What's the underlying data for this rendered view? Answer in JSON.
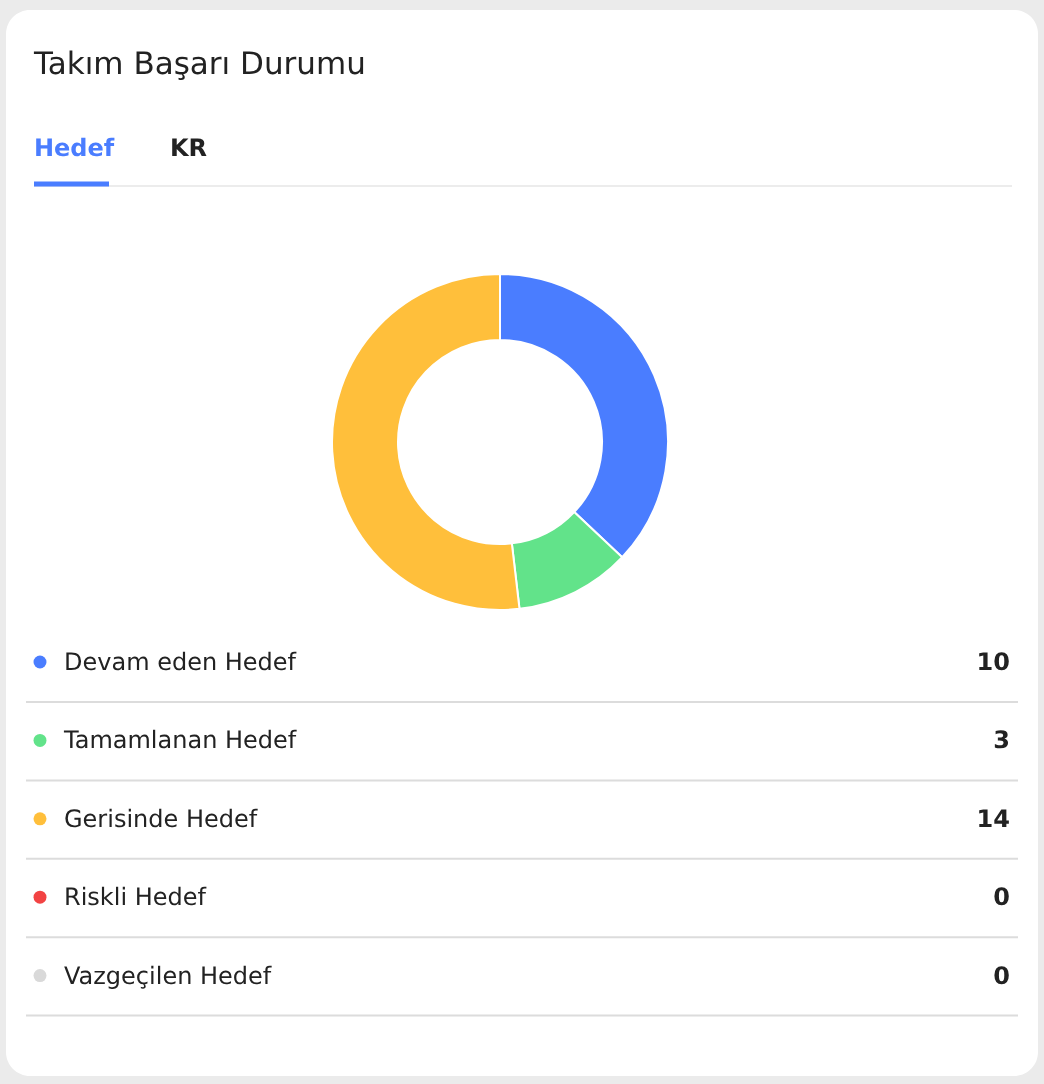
{
  "chart_data": {
    "type": "donut",
    "title": "Takım Başarı Durumu",
    "annotations": [
      "Hedef",
      "KR"
    ],
    "categories": [
      "Devam eden Hedef",
      "Tamamlanan Hedef",
      "Gerisinde Hedef",
      "Riskli Hedef",
      "Vazgeçilen Hedef"
    ],
    "values": [
      10,
      3,
      14,
      0,
      0
    ],
    "value_labels": [
      "10",
      "3",
      "14",
      "0",
      "0"
    ],
    "colors": [
      "#4a7dff",
      "#62e38a",
      "#ffbf3b",
      "#f24343",
      "#d9d9d9"
    ],
    "legend": "bottom"
  }
}
